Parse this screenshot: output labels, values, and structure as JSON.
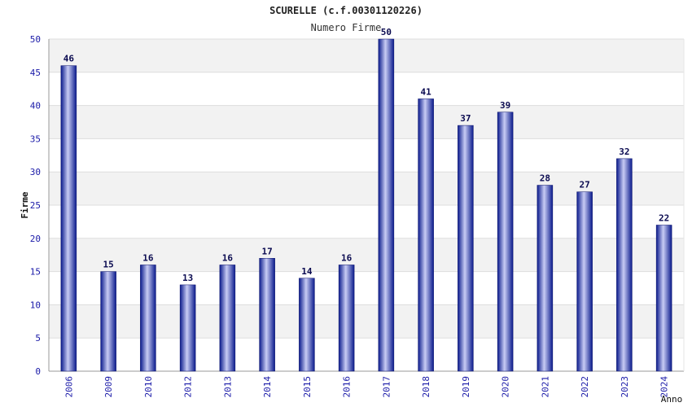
{
  "chart_data": {
    "type": "bar",
    "title": "SCURELLE (c.f.00301120226)",
    "subtitle": "Numero Firme",
    "xlabel": "Anno",
    "ylabel": "Firme",
    "categories": [
      "2006",
      "2009",
      "2010",
      "2012",
      "2013",
      "2014",
      "2015",
      "2016",
      "2017",
      "2018",
      "2019",
      "2020",
      "2021",
      "2022",
      "2023",
      "2024"
    ],
    "values": [
      46,
      15,
      16,
      13,
      16,
      17,
      14,
      16,
      50,
      41,
      37,
      39,
      28,
      27,
      32,
      22
    ],
    "ylim": [
      0,
      50
    ],
    "yticks": [
      0,
      5,
      10,
      15,
      20,
      25,
      30,
      35,
      40,
      45,
      50
    ],
    "grid": true,
    "legend": "none",
    "colors": {
      "bar_dark": "#0a1a8c",
      "bar_light": "#c8ccf4",
      "tick_label": "#1a1aa8",
      "value_label": "#0a0a50",
      "band": "#f2f2f2"
    }
  }
}
